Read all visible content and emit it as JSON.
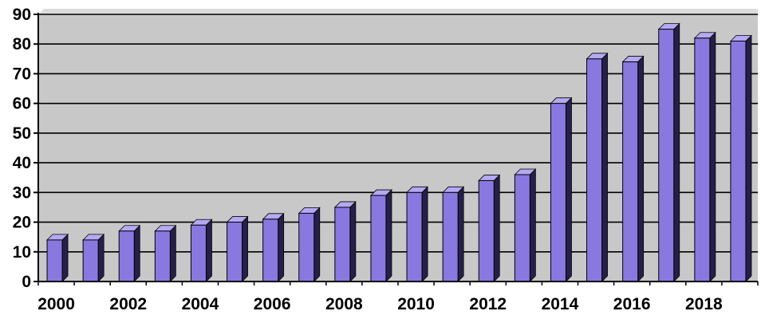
{
  "chart_data": {
    "type": "bar",
    "title": "",
    "xlabel": "",
    "ylabel": "",
    "categories": [
      "2000",
      "2001",
      "2002",
      "2003",
      "2004",
      "2005",
      "2006",
      "2007",
      "2008",
      "2009",
      "2010",
      "2011",
      "2012",
      "2013",
      "2014",
      "2015",
      "2016",
      "2017",
      "2018",
      "2019"
    ],
    "x_tick_labels": [
      "2000",
      "2002",
      "2004",
      "2006",
      "2008",
      "2010",
      "2012",
      "2014",
      "2016",
      "2018"
    ],
    "y_tick_labels": [
      "0",
      "10",
      "20",
      "30",
      "40",
      "50",
      "60",
      "70",
      "80",
      "90"
    ],
    "values": [
      14,
      14,
      17,
      17,
      19,
      20,
      21,
      23,
      25,
      29,
      30,
      30,
      34,
      36,
      60,
      75,
      74,
      85,
      82,
      81
    ],
    "ylim": [
      0,
      90
    ],
    "grid": true,
    "style": "3d-bar",
    "colors": {
      "bar_front": "#8878e0",
      "bar_top": "#b4a9f2",
      "bar_side": "#24204a",
      "plot_background": "#c8c8c8",
      "grid_line": "#000000"
    }
  }
}
